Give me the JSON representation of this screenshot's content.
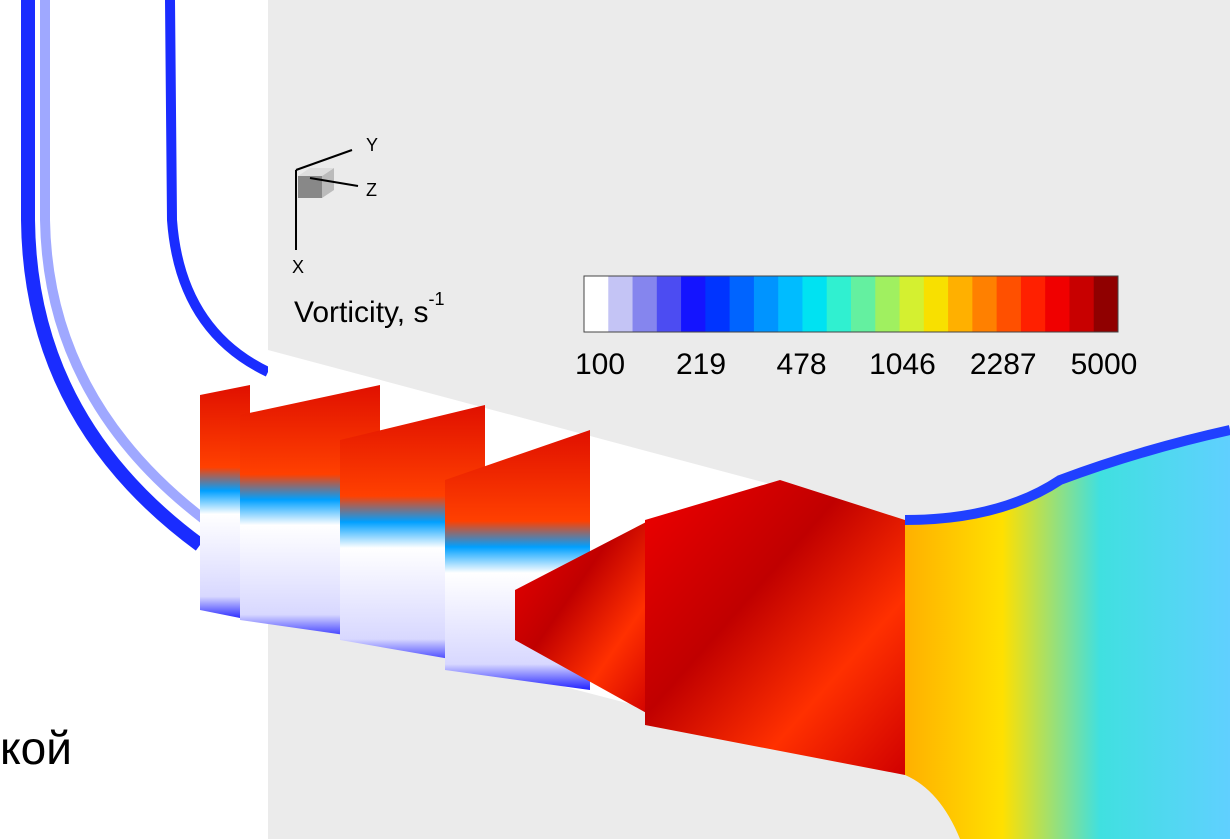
{
  "triad": {
    "x": "X",
    "y": "Y",
    "z": "Z"
  },
  "colorbar": {
    "title": "Vorticity, s",
    "title_sup": "-1",
    "log_scale": true,
    "ticks": [
      100,
      219,
      478,
      1046,
      2287,
      5000
    ],
    "colors": [
      "#ffffff",
      "#c4c4f5",
      "#8585ee",
      "#4c4cf2",
      "#1414ff",
      "#0034ff",
      "#0064ff",
      "#0094ff",
      "#00bcff",
      "#00e2f2",
      "#30f0d0",
      "#64f0a0",
      "#a0f060",
      "#d4f030",
      "#f8e000",
      "#ffb000",
      "#ff8000",
      "#ff5000",
      "#ff2000",
      "#f00000",
      "#c80000",
      "#900000"
    ]
  },
  "caption_fragment": "кой"
}
